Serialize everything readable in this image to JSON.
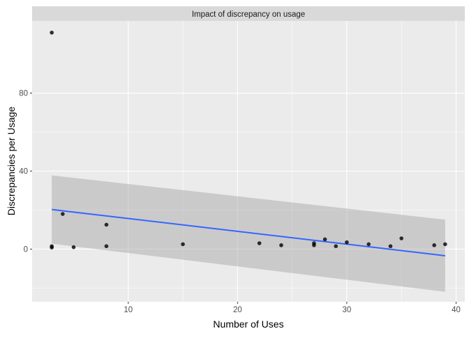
{
  "chart_data": {
    "type": "scatter",
    "title": "Impact of discrepancy on usage",
    "xlabel": "Number of Uses",
    "ylabel": "Discrepancies per Usage",
    "xlim": [
      1.2,
      40.8
    ],
    "ylim": [
      -27,
      117
    ],
    "x_ticks": [
      10,
      20,
      30,
      40
    ],
    "y_ticks": [
      0,
      40,
      80
    ],
    "x_tick_labels": [
      "10",
      "20",
      "30",
      "40"
    ],
    "y_tick_labels": [
      "0",
      "40",
      "80"
    ],
    "grid": true,
    "legend": "none",
    "points": [
      {
        "x": 3,
        "y": 111
      },
      {
        "x": 3,
        "y": 1.5
      },
      {
        "x": 3,
        "y": 0.8
      },
      {
        "x": 4,
        "y": 18
      },
      {
        "x": 5,
        "y": 1
      },
      {
        "x": 8,
        "y": 12.5
      },
      {
        "x": 8,
        "y": 1.5
      },
      {
        "x": 15,
        "y": 2.5
      },
      {
        "x": 22,
        "y": 3
      },
      {
        "x": 24,
        "y": 2
      },
      {
        "x": 27,
        "y": 2
      },
      {
        "x": 27,
        "y": 3
      },
      {
        "x": 28,
        "y": 5
      },
      {
        "x": 29,
        "y": 1.5
      },
      {
        "x": 30,
        "y": 3.5
      },
      {
        "x": 32,
        "y": 2.5
      },
      {
        "x": 34,
        "y": 1.5
      },
      {
        "x": 35,
        "y": 5.5
      },
      {
        "x": 38,
        "y": 2
      },
      {
        "x": 39,
        "y": 2.5
      }
    ],
    "trend_line": {
      "method": "lm",
      "x": [
        3,
        39
      ],
      "y": [
        20.3,
        -3.4
      ],
      "ci_lower": [
        2.8,
        -21.9
      ],
      "ci_upper": [
        37.8,
        15.1
      ]
    },
    "colors": {
      "panel_bg": "#ebebeb",
      "strip_bg": "#d9d9d9",
      "grid_major": "#ffffff",
      "point": "#000000",
      "trend": "#3366ff",
      "ribbon": "#999999"
    }
  }
}
